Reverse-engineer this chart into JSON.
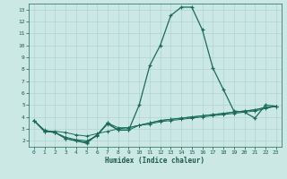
{
  "xlabel": "Humidex (Indice chaleur)",
  "bg_color": "#cce8e4",
  "grid_color": "#b0d4d0",
  "line_color": "#1a6b5a",
  "xlim": [
    -0.5,
    23.5
  ],
  "ylim": [
    1.5,
    13.5
  ],
  "xticks": [
    0,
    1,
    2,
    3,
    4,
    5,
    6,
    7,
    8,
    9,
    10,
    11,
    12,
    13,
    14,
    15,
    16,
    17,
    18,
    19,
    20,
    21,
    22,
    23
  ],
  "yticks": [
    2,
    3,
    4,
    5,
    6,
    7,
    8,
    9,
    10,
    11,
    12,
    13
  ],
  "main_series": [
    [
      0,
      3.7
    ],
    [
      1,
      2.8
    ],
    [
      2,
      2.7
    ],
    [
      3,
      2.2
    ],
    [
      4,
      2.0
    ],
    [
      5,
      1.8
    ],
    [
      6,
      2.5
    ],
    [
      7,
      3.5
    ],
    [
      8,
      2.9
    ],
    [
      9,
      2.9
    ],
    [
      10,
      5.0
    ],
    [
      11,
      8.3
    ],
    [
      12,
      10.0
    ],
    [
      13,
      12.5
    ],
    [
      14,
      13.2
    ],
    [
      15,
      13.2
    ],
    [
      16,
      11.3
    ],
    [
      17,
      8.1
    ],
    [
      18,
      6.3
    ],
    [
      19,
      4.5
    ],
    [
      20,
      4.4
    ],
    [
      21,
      3.9
    ],
    [
      22,
      5.0
    ],
    [
      23,
      4.9
    ]
  ],
  "extra_series": [
    [
      [
        0,
        3.7
      ],
      [
        1,
        2.8
      ],
      [
        2,
        2.8
      ],
      [
        3,
        2.7
      ],
      [
        4,
        2.5
      ],
      [
        5,
        2.4
      ],
      [
        6,
        2.6
      ],
      [
        7,
        2.8
      ],
      [
        8,
        3.0
      ],
      [
        9,
        3.1
      ],
      [
        10,
        3.3
      ],
      [
        11,
        3.4
      ],
      [
        12,
        3.6
      ],
      [
        13,
        3.7
      ],
      [
        14,
        3.8
      ],
      [
        15,
        3.9
      ],
      [
        16,
        4.0
      ],
      [
        17,
        4.1
      ],
      [
        18,
        4.2
      ],
      [
        19,
        4.3
      ],
      [
        20,
        4.4
      ],
      [
        21,
        4.5
      ],
      [
        22,
        4.7
      ],
      [
        23,
        4.9
      ]
    ],
    [
      [
        0,
        3.7
      ],
      [
        1,
        2.9
      ],
      [
        2,
        2.7
      ],
      [
        3,
        2.3
      ],
      [
        4,
        2.1
      ],
      [
        5,
        2.0
      ],
      [
        6,
        2.4
      ],
      [
        7,
        3.5
      ],
      [
        8,
        3.1
      ],
      [
        9,
        3.1
      ],
      [
        10,
        3.3
      ],
      [
        11,
        3.5
      ],
      [
        12,
        3.7
      ],
      [
        13,
        3.8
      ],
      [
        14,
        3.9
      ],
      [
        15,
        4.0
      ],
      [
        16,
        4.1
      ],
      [
        17,
        4.2
      ],
      [
        18,
        4.3
      ],
      [
        19,
        4.4
      ],
      [
        20,
        4.5
      ],
      [
        21,
        4.6
      ],
      [
        22,
        4.8
      ],
      [
        23,
        4.9
      ]
    ],
    [
      [
        0,
        3.7
      ],
      [
        1,
        2.8
      ],
      [
        2,
        2.7
      ],
      [
        3,
        2.2
      ],
      [
        4,
        2.0
      ],
      [
        5,
        1.9
      ],
      [
        6,
        2.5
      ],
      [
        7,
        3.4
      ],
      [
        8,
        2.9
      ],
      [
        9,
        2.9
      ],
      [
        10,
        3.3
      ],
      [
        11,
        3.5
      ],
      [
        12,
        3.7
      ],
      [
        13,
        3.8
      ],
      [
        14,
        3.9
      ],
      [
        15,
        4.0
      ],
      [
        16,
        4.1
      ],
      [
        17,
        4.2
      ],
      [
        18,
        4.3
      ],
      [
        19,
        4.4
      ],
      [
        20,
        4.5
      ],
      [
        21,
        4.6
      ],
      [
        22,
        4.8
      ],
      [
        23,
        4.9
      ]
    ]
  ]
}
